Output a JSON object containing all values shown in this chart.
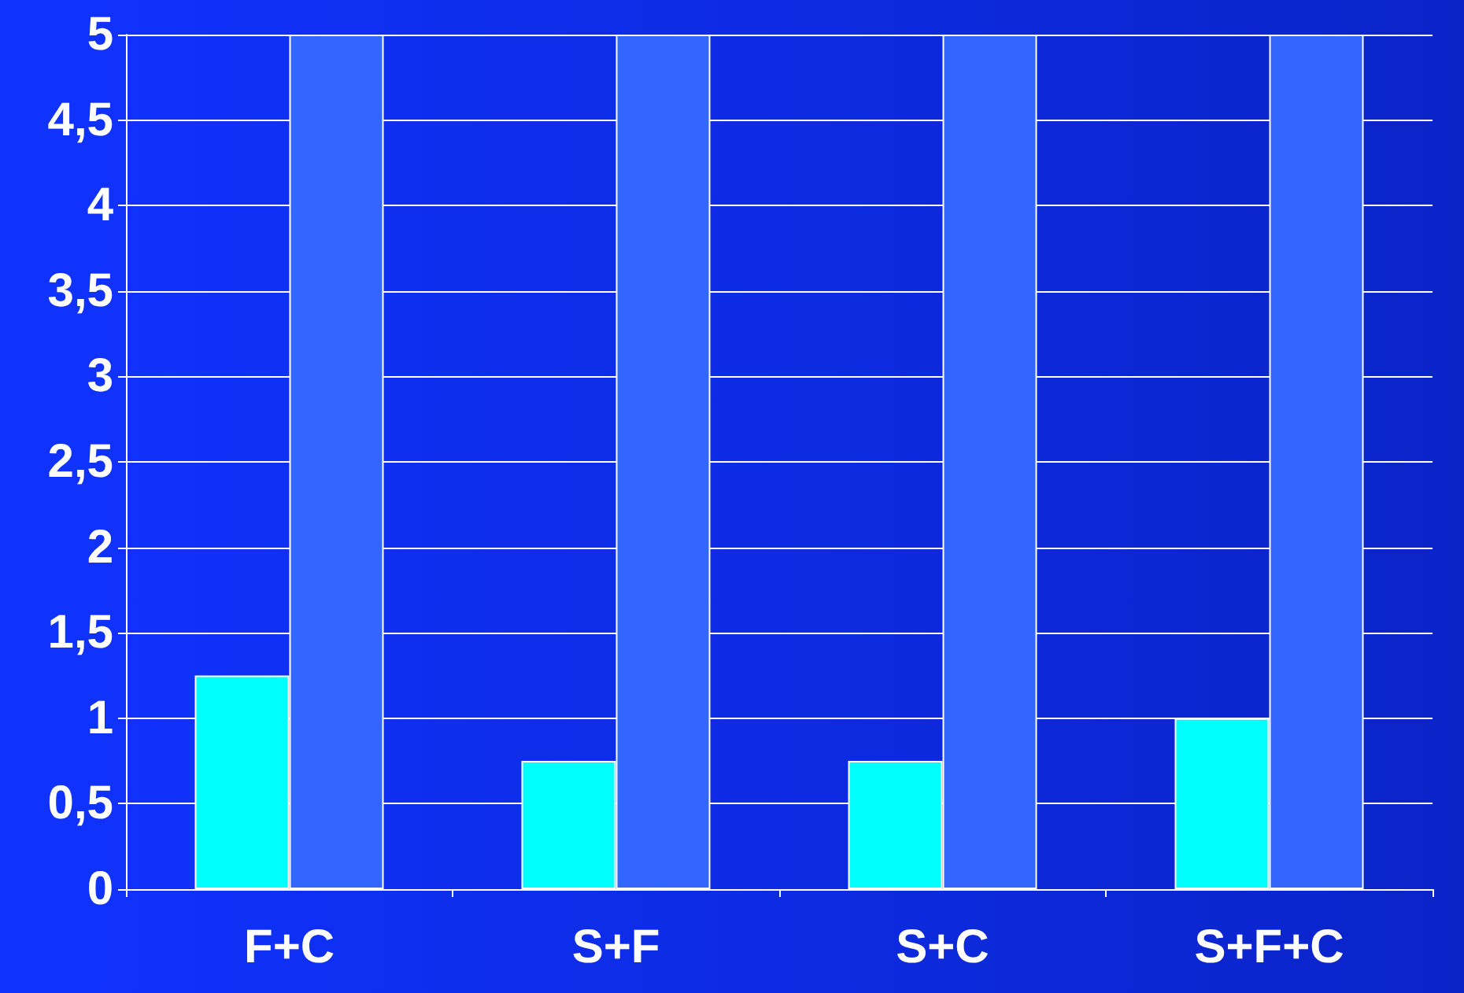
{
  "chart_data": {
    "type": "bar",
    "categories": [
      "F+C",
      "S+F",
      "S+C",
      "S+F+C"
    ],
    "series": [
      {
        "color": "#00ffff",
        "values": [
          1.25,
          0.75,
          0.75,
          1
        ]
      },
      {
        "color": "#3366ff",
        "values": [
          5,
          5,
          5,
          5
        ]
      }
    ],
    "ylim": [
      0,
      5
    ],
    "yticks": [
      0,
      {
        "value": 0.5,
        "label": "0,5"
      },
      1,
      {
        "value": 1.5,
        "label": "1,5"
      },
      2,
      {
        "value": 2.5,
        "label": "2,5"
      },
      3,
      {
        "value": 3.5,
        "label": "3,5"
      },
      4,
      {
        "value": 4.5,
        "label": "4,5"
      },
      5
    ],
    "grid": "y"
  }
}
